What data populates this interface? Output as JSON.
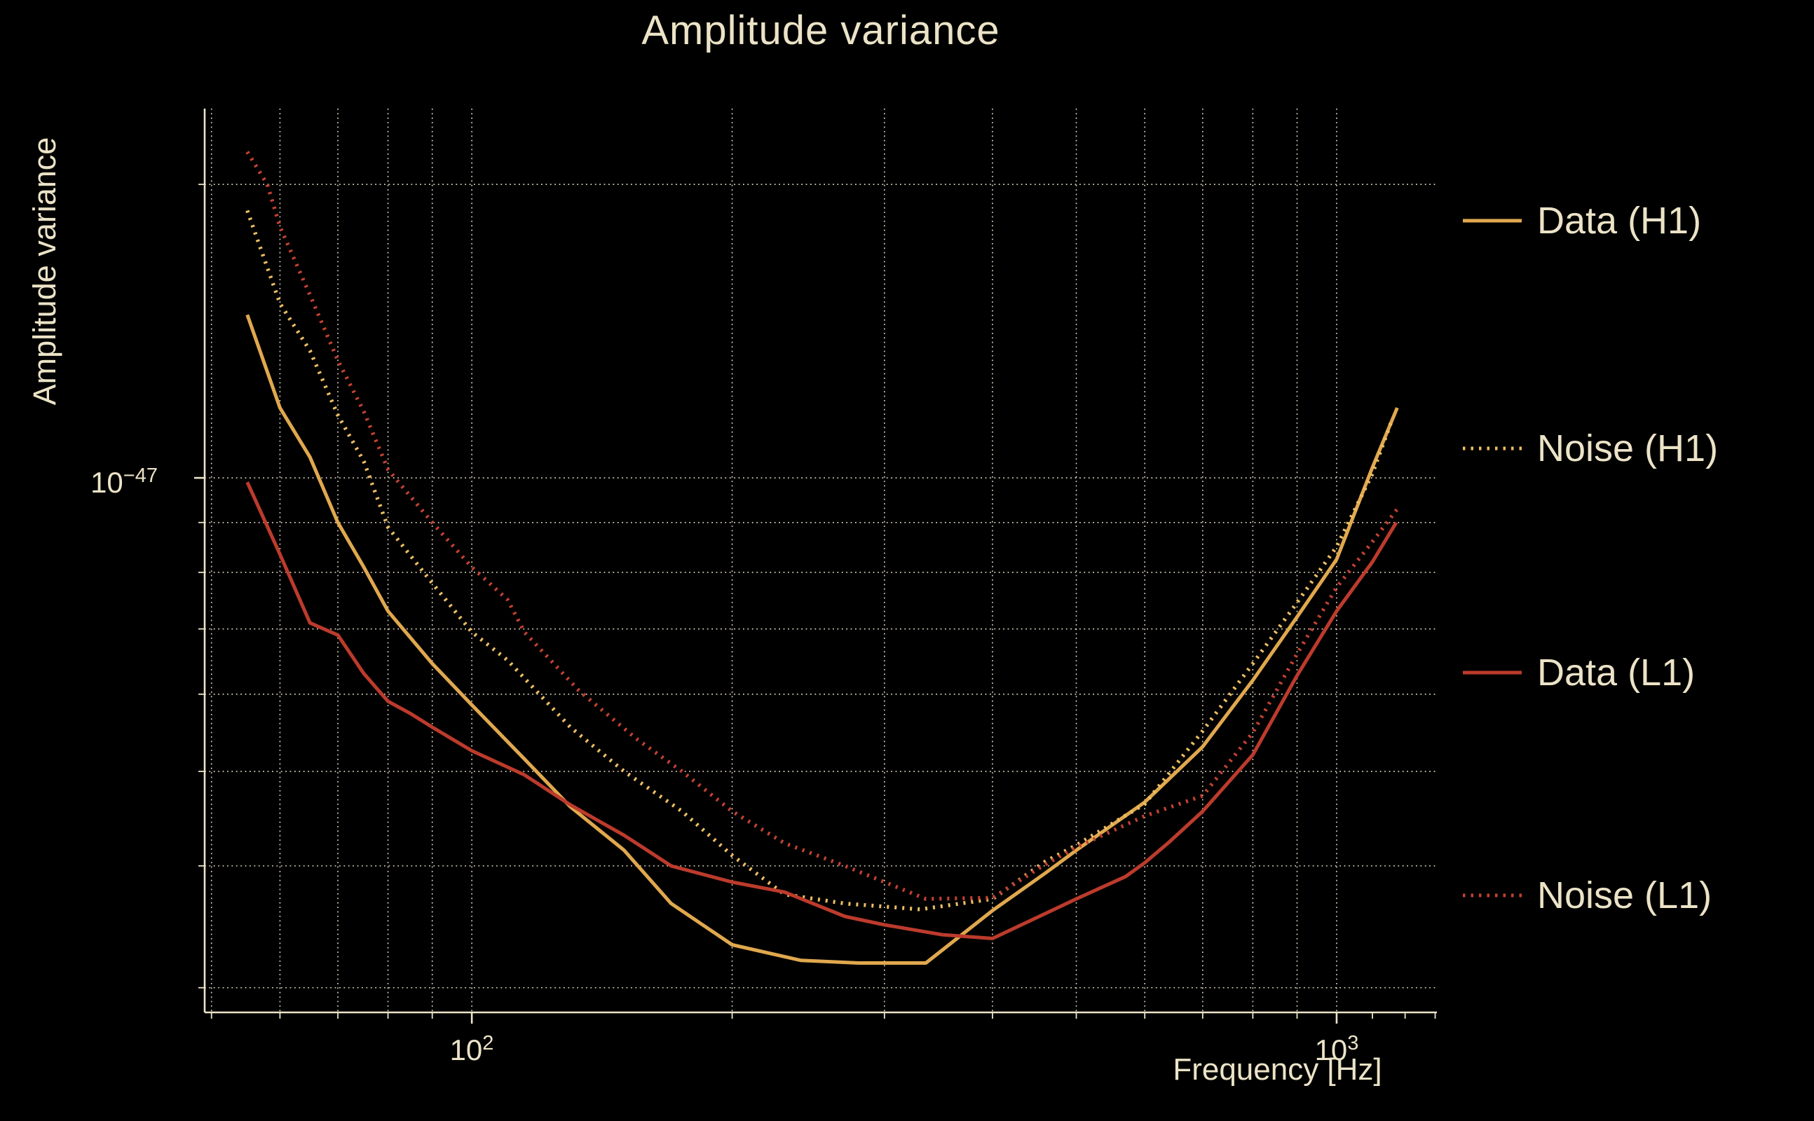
{
  "colors": {
    "background": "#000000",
    "text": "#ece3c7",
    "grid": "#f0e7cf",
    "gold": "#e0a84e",
    "gold_dotted": "#ecbe63",
    "red": "#bc3b2c",
    "red_dotted": "#c44233"
  },
  "chart_data": {
    "type": "line",
    "title": "Amplitude variance",
    "xlabel": "Frequency [Hz]",
    "ylabel": "Amplitude variance",
    "x_scale": "log",
    "y_scale": "log",
    "x_unit": "Hz",
    "y_unit": "1e-48",
    "xlim": [
      49.1,
      1306
    ],
    "ylim": [
      2.83,
      23.92
    ],
    "x_gridlines": [
      50,
      60,
      70,
      80,
      90,
      100,
      200,
      300,
      400,
      500,
      600,
      700,
      800,
      900,
      1000
    ],
    "x_minor_ticks_extra": [
      1100,
      1200,
      1300
    ],
    "y_gridlines": [
      3,
      4,
      5,
      6,
      7,
      8,
      9,
      10,
      20
    ],
    "x_major_ticks": [
      100,
      1000
    ],
    "y_major_ticks": [
      10
    ],
    "x_ticks": [
      {
        "base": "10",
        "exp": "2",
        "value": 100
      },
      {
        "base": "10",
        "exp": "3",
        "value": 1000
      }
    ],
    "y_ticks": [
      {
        "base": "10",
        "exp": "−47",
        "value": 1e-47
      }
    ],
    "legend_position": "right",
    "grid": true,
    "series": [
      {
        "id": "data-h1",
        "name": "Data (H1)",
        "color": "#e0a84e",
        "dash": "solid",
        "points": [
          [
            55,
            14.7
          ],
          [
            60,
            11.8
          ],
          [
            65,
            10.5
          ],
          [
            70,
            9.0
          ],
          [
            75,
            8.1
          ],
          [
            80,
            7.3
          ],
          [
            90,
            6.45
          ],
          [
            100,
            5.85
          ],
          [
            115,
            5.15
          ],
          [
            130,
            4.6
          ],
          [
            150,
            4.15
          ],
          [
            170,
            3.66
          ],
          [
            200,
            3.32
          ],
          [
            240,
            3.2
          ],
          [
            280,
            3.18
          ],
          [
            335,
            3.18
          ],
          [
            400,
            3.6
          ],
          [
            460,
            3.93
          ],
          [
            500,
            4.15
          ],
          [
            600,
            4.65
          ],
          [
            700,
            5.3
          ],
          [
            800,
            6.2
          ],
          [
            900,
            7.2
          ],
          [
            1000,
            8.25
          ],
          [
            1100,
            10.25
          ],
          [
            1175,
            11.8
          ]
        ]
      },
      {
        "id": "noise-h1",
        "name": "Noise (H1)",
        "color": "#ecbe63",
        "dash": "dotted",
        "points": [
          [
            55,
            18.8
          ],
          [
            60,
            15.1
          ],
          [
            65,
            13.5
          ],
          [
            70,
            11.6
          ],
          [
            75,
            10.4
          ],
          [
            80,
            8.9
          ],
          [
            90,
            7.8
          ],
          [
            100,
            6.95
          ],
          [
            110,
            6.5
          ],
          [
            130,
            5.55
          ],
          [
            150,
            5.0
          ],
          [
            175,
            4.55
          ],
          [
            200,
            4.1
          ],
          [
            230,
            3.74
          ],
          [
            270,
            3.66
          ],
          [
            330,
            3.61
          ],
          [
            400,
            3.7
          ],
          [
            460,
            4.04
          ],
          [
            500,
            4.2
          ],
          [
            600,
            4.63
          ],
          [
            700,
            5.5
          ],
          [
            800,
            6.45
          ],
          [
            900,
            7.45
          ],
          [
            1000,
            8.5
          ],
          [
            1100,
            10.1
          ],
          [
            1160,
            11.5
          ]
        ]
      },
      {
        "id": "data-l1",
        "name": "Data (L1)",
        "color": "#bc3b2c",
        "dash": "solid",
        "points": [
          [
            55,
            9.9
          ],
          [
            60,
            8.35
          ],
          [
            65,
            7.1
          ],
          [
            70,
            6.9
          ],
          [
            75,
            6.3
          ],
          [
            80,
            5.9
          ],
          [
            85,
            5.73
          ],
          [
            90,
            5.55
          ],
          [
            100,
            5.25
          ],
          [
            115,
            4.96
          ],
          [
            130,
            4.62
          ],
          [
            150,
            4.3
          ],
          [
            170,
            4.0
          ],
          [
            200,
            3.85
          ],
          [
            230,
            3.76
          ],
          [
            270,
            3.55
          ],
          [
            300,
            3.48
          ],
          [
            350,
            3.4
          ],
          [
            400,
            3.37
          ],
          [
            500,
            3.7
          ],
          [
            570,
            3.9
          ],
          [
            600,
            4.03
          ],
          [
            640,
            4.23
          ],
          [
            700,
            4.55
          ],
          [
            800,
            5.2
          ],
          [
            900,
            6.27
          ],
          [
            1000,
            7.3
          ],
          [
            1100,
            8.2
          ],
          [
            1172,
            9.0
          ]
        ]
      },
      {
        "id": "noise-l1",
        "name": "Noise (L1)",
        "color": "#c44233",
        "dash": "dotted",
        "points": [
          [
            55,
            21.6
          ],
          [
            58,
            20.0
          ],
          [
            60,
            18.1
          ],
          [
            65,
            15.4
          ],
          [
            70,
            13.2
          ],
          [
            75,
            11.7
          ],
          [
            80,
            10.2
          ],
          [
            90,
            9.0
          ],
          [
            100,
            8.1
          ],
          [
            110,
            7.5
          ],
          [
            115,
            6.95
          ],
          [
            133,
            6.05
          ],
          [
            155,
            5.4
          ],
          [
            175,
            5.0
          ],
          [
            200,
            4.55
          ],
          [
            230,
            4.22
          ],
          [
            270,
            4.0
          ],
          [
            335,
            3.7
          ],
          [
            400,
            3.71
          ],
          [
            457,
            4.0
          ],
          [
            500,
            4.18
          ],
          [
            600,
            4.5
          ],
          [
            700,
            4.72
          ],
          [
            800,
            5.48
          ],
          [
            900,
            6.6
          ],
          [
            1000,
            7.72
          ],
          [
            1100,
            8.6
          ],
          [
            1174,
            9.28
          ]
        ]
      }
    ]
  }
}
